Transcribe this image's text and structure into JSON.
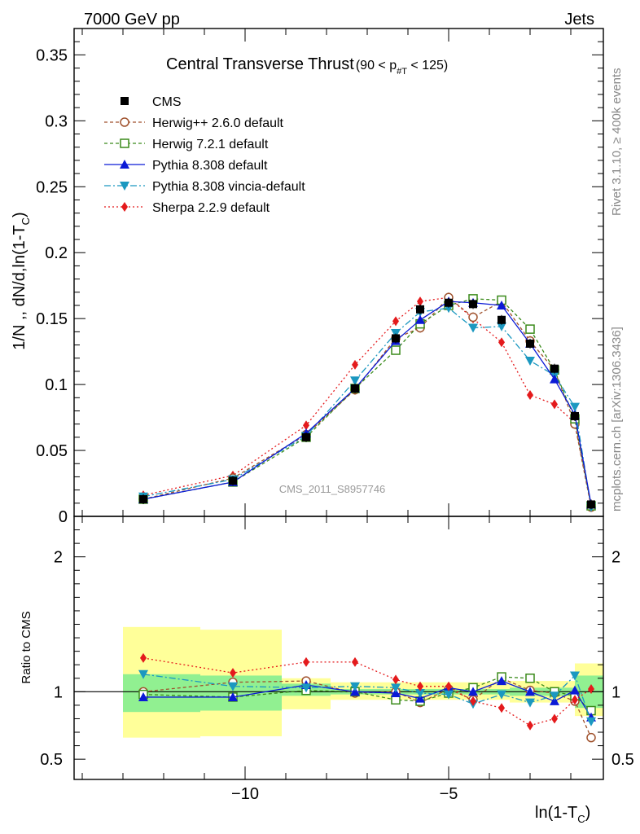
{
  "header": {
    "left": "7000 GeV pp",
    "right": "Jets"
  },
  "side": {
    "rivet": "Rivet 3.1.10, ≥ 400k events",
    "mcplots": "mcplots.cern.ch [arXiv:1306.3436]"
  },
  "watermark": "CMS_2011_S8957746",
  "chart_data": [
    {
      "type": "line",
      "panel": "main",
      "title": "Central Transverse Thrust",
      "title_cut": "(90 < p",
      "title_cut_sub": "#T",
      "title_cut_end": " < 125)",
      "ylabel": "1/N ,, dN/d,ln(1-T",
      "ylabel_sub": "C",
      "ylabel_end": ")",
      "xlabel": "ln(1-T",
      "xlabel_sub": "C",
      "xlabel_end": ")",
      "xlim": [
        -14.2,
        -1.2
      ],
      "ylim": [
        0,
        0.37
      ],
      "yticks": [
        0,
        0.05,
        0.1,
        0.15,
        0.2,
        0.25,
        0.3,
        0.35
      ],
      "ytick_labels": [
        "0",
        "0.05",
        "0.1",
        "0.15",
        "0.2",
        "0.25",
        "0.3",
        "0.35"
      ],
      "legend_position": "top-left",
      "x": [
        -12.5,
        -10.3,
        -8.5,
        -7.3,
        -6.3,
        -5.7,
        -5.0,
        -4.4,
        -3.7,
        -3.0,
        -2.4,
        -1.9,
        -1.5
      ],
      "series": [
        {
          "name": "CMS",
          "color": "#000000",
          "marker": "square-filled",
          "dash": "none",
          "values": [
            0.013,
            0.027,
            0.06,
            0.097,
            0.135,
            0.157,
            0.162,
            0.161,
            0.149,
            0.131,
            0.112,
            0.076,
            0.009
          ]
        },
        {
          "name": "Herwig++ 2.6.0 default",
          "color": "#a0522d",
          "marker": "circle-open",
          "dash": "4,3",
          "values": [
            0.013,
            0.029,
            0.062,
            0.096,
            0.135,
            0.143,
            0.166,
            0.151,
            0.163,
            0.133,
            0.111,
            0.07,
            0.007
          ]
        },
        {
          "name": "Herwig 7.2.1 default",
          "color": "#3a8a1a",
          "marker": "square-open",
          "dash": "4,3",
          "values": [
            0.013,
            0.026,
            0.06,
            0.097,
            0.126,
            0.146,
            0.16,
            0.165,
            0.164,
            0.142,
            0.111,
            0.074,
            0.008
          ]
        },
        {
          "name": "Pythia 8.308 default",
          "color": "#0b1ad6",
          "marker": "triangle-up",
          "dash": "none",
          "values": [
            0.013,
            0.026,
            0.063,
            0.097,
            0.133,
            0.149,
            0.163,
            0.162,
            0.16,
            0.131,
            0.104,
            0.077,
            0.009
          ]
        },
        {
          "name": "Pythia 8.308 vincia-default",
          "color": "#1b98c0",
          "marker": "triangle-down",
          "dash": "8,3,2,3",
          "values": [
            0.015,
            0.028,
            0.061,
            0.103,
            0.139,
            0.155,
            0.158,
            0.143,
            0.144,
            0.118,
            0.107,
            0.083,
            0.007
          ]
        },
        {
          "name": "Sherpa 2.2.9 default",
          "color": "#e41a1c",
          "marker": "diamond",
          "dash": "2,3",
          "values": [
            0.016,
            0.031,
            0.069,
            0.115,
            0.148,
            0.163,
            0.166,
            0.15,
            0.132,
            0.092,
            0.085,
            0.071,
            0.009
          ]
        }
      ]
    },
    {
      "type": "line",
      "panel": "ratio",
      "ylabel": "Ratio to CMS",
      "ylim": [
        0.35,
        2.3
      ],
      "yticks": [
        0.5,
        1,
        2
      ],
      "ytick_labels": [
        "0.5",
        "1",
        "2"
      ],
      "xticks": [
        -10,
        -5
      ],
      "xtick_labels": [
        "−10",
        "−5"
      ],
      "bands": [
        {
          "x0": -13.0,
          "x1": -11.1,
          "stat_lo": 0.85,
          "stat_hi": 1.13,
          "tot_lo": 0.66,
          "tot_hi": 1.48
        },
        {
          "x0": -11.1,
          "x1": -9.1,
          "stat_lo": 0.86,
          "stat_hi": 1.12,
          "tot_lo": 0.67,
          "tot_hi": 1.46
        },
        {
          "x0": -9.1,
          "x1": -7.9,
          "stat_lo": 0.97,
          "stat_hi": 1.06,
          "tot_lo": 0.87,
          "tot_hi": 1.1
        },
        {
          "x0": -7.9,
          "x1": -3.5,
          "stat_lo": 0.98,
          "stat_hi": 1.02,
          "tot_lo": 0.94,
          "tot_hi": 1.07
        },
        {
          "x0": -3.5,
          "x1": -1.9,
          "stat_lo": 0.97,
          "stat_hi": 1.03,
          "tot_lo": 0.92,
          "tot_hi": 1.08
        },
        {
          "x0": -1.9,
          "x1": -1.2,
          "stat_lo": 0.88,
          "stat_hi": 1.12,
          "tot_lo": 0.82,
          "tot_hi": 1.21
        }
      ],
      "series": [
        {
          "name": "Herwig++ 2.6.0 default",
          "values": [
            1.0,
            1.07,
            1.08,
            0.99,
            1.0,
            0.92,
            1.02,
            0.94,
            1.1,
            1.01,
            0.99,
            0.93,
            0.66
          ]
        },
        {
          "name": "Herwig 7.2.1 default",
          "values": [
            0.98,
            0.96,
            1.01,
            1.0,
            0.94,
            0.93,
            0.99,
            1.03,
            1.11,
            1.1,
            1.0,
            0.97,
            0.86
          ]
        },
        {
          "name": "Pythia 8.308 default",
          "values": [
            0.96,
            0.96,
            1.05,
            1.0,
            0.99,
            0.95,
            1.03,
            1.0,
            1.08,
            1.0,
            0.93,
            1.01,
            0.81
          ]
        },
        {
          "name": "Pythia 8.308 vincia-default",
          "values": [
            1.13,
            1.04,
            1.03,
            1.04,
            1.03,
            0.99,
            0.98,
            0.91,
            0.98,
            0.92,
            0.97,
            1.12,
            0.78
          ]
        },
        {
          "name": "Sherpa 2.2.9 default",
          "values": [
            1.25,
            1.14,
            1.22,
            1.22,
            1.09,
            1.04,
            1.04,
            0.93,
            0.88,
            0.75,
            0.8,
            0.94,
            1.02
          ]
        }
      ]
    }
  ]
}
